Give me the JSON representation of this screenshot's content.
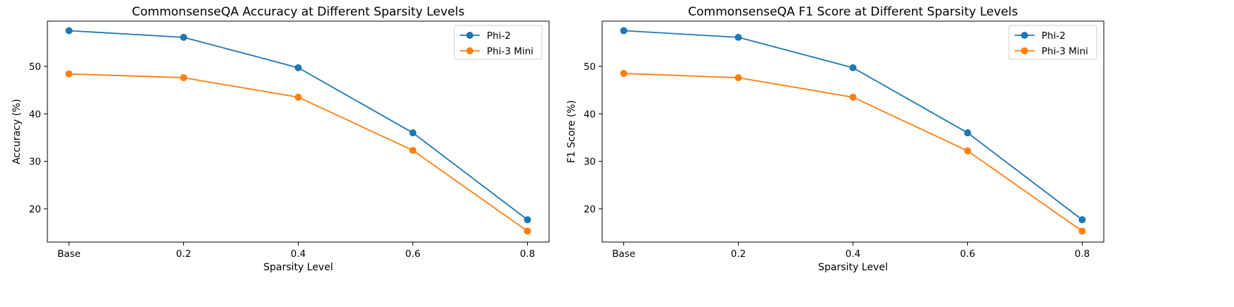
{
  "chart_data": [
    {
      "type": "line",
      "title": "CommonsenseQA Accuracy at Different Sparsity Levels",
      "xlabel": "Sparsity Level",
      "ylabel": "Accuracy (%)",
      "categories": [
        "Base",
        "0.2",
        "0.4",
        "0.6",
        "0.8"
      ],
      "ylim": [
        13.0,
        59.5
      ],
      "yticks": [
        20,
        30,
        40,
        50
      ],
      "grid": false,
      "legend_position": "top-right",
      "series": [
        {
          "name": "Phi-2",
          "color": "#1f77b4",
          "values": [
            57.5,
            56.1,
            49.7,
            36.0,
            17.7
          ]
        },
        {
          "name": "Phi-3 Mini",
          "color": "#ff7f0e",
          "values": [
            48.4,
            47.6,
            43.5,
            32.3,
            15.3
          ]
        }
      ]
    },
    {
      "type": "line",
      "title": "CommonsenseQA F1 Score at Different Sparsity Levels",
      "xlabel": "Sparsity Level",
      "ylabel": "F1 Score (%)",
      "categories": [
        "Base",
        "0.2",
        "0.4",
        "0.6",
        "0.8"
      ],
      "ylim": [
        13.0,
        59.5
      ],
      "yticks": [
        20,
        30,
        40,
        50
      ],
      "grid": false,
      "legend_position": "top-right",
      "series": [
        {
          "name": "Phi-2",
          "color": "#1f77b4",
          "values": [
            57.5,
            56.1,
            49.7,
            36.0,
            17.7
          ]
        },
        {
          "name": "Phi-3 Mini",
          "color": "#ff7f0e",
          "values": [
            48.5,
            47.6,
            43.5,
            32.2,
            15.3
          ]
        }
      ]
    }
  ]
}
